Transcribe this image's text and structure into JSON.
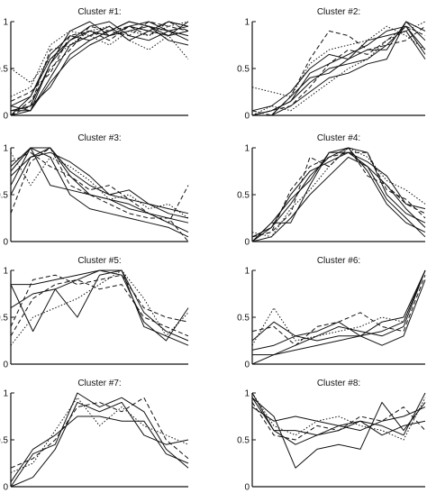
{
  "chart_data": [
    {
      "type": "line",
      "title": "Cluster #1:",
      "ylim": [
        0,
        1
      ],
      "yticks": [
        "0",
        "0.5",
        "1"
      ],
      "series": [
        {
          "values": [
            0.05,
            0.1,
            0.55,
            0.8,
            0.9,
            0.85,
            0.95,
            0.9,
            0.85,
            1.0
          ],
          "dash": "solid"
        },
        {
          "values": [
            0.0,
            0.05,
            0.4,
            0.75,
            0.85,
            0.95,
            0.8,
            0.9,
            1.0,
            0.95
          ],
          "dash": "solid"
        },
        {
          "values": [
            0.1,
            0.2,
            0.65,
            0.85,
            0.8,
            0.9,
            1.0,
            0.95,
            0.9,
            0.8
          ],
          "dash": "solid"
        },
        {
          "values": [
            0.0,
            0.15,
            0.5,
            0.7,
            0.95,
            0.9,
            0.85,
            1.0,
            0.95,
            0.9
          ],
          "dash": "dashed"
        },
        {
          "values": [
            0.2,
            0.3,
            0.75,
            0.9,
            0.85,
            0.75,
            0.9,
            0.85,
            0.95,
            1.0
          ],
          "dash": "dotted"
        },
        {
          "values": [
            0.05,
            0.05,
            0.35,
            0.6,
            0.75,
            0.85,
            0.95,
            1.0,
            0.9,
            0.85
          ],
          "dash": "solid"
        },
        {
          "values": [
            0.0,
            0.2,
            0.6,
            0.8,
            0.95,
            1.0,
            0.85,
            0.8,
            0.9,
            0.95
          ],
          "dash": "solid"
        },
        {
          "values": [
            0.15,
            0.25,
            0.45,
            0.85,
            0.9,
            0.8,
            0.95,
            0.9,
            1.0,
            0.9
          ],
          "dash": "dashed"
        },
        {
          "values": [
            0.5,
            0.35,
            0.6,
            0.75,
            0.9,
            0.95,
            0.8,
            0.7,
            0.85,
            0.6
          ],
          "dash": "dotted"
        },
        {
          "values": [
            0.05,
            0.1,
            0.3,
            0.65,
            0.8,
            0.9,
            1.0,
            0.95,
            0.85,
            0.9
          ],
          "dash": "solid"
        },
        {
          "values": [
            0.1,
            0.05,
            0.55,
            0.9,
            1.0,
            0.85,
            0.9,
            0.95,
            0.8,
            0.75
          ],
          "dash": "solid"
        },
        {
          "values": [
            0.0,
            0.1,
            0.7,
            0.75,
            0.85,
            0.9,
            0.95,
            0.85,
            1.0,
            0.95
          ],
          "dash": "dashed"
        }
      ]
    },
    {
      "type": "line",
      "title": "Cluster #2:",
      "ylim": [
        0,
        1
      ],
      "yticks": [
        "0",
        "0.5",
        "1"
      ],
      "series": [
        {
          "values": [
            0.0,
            0.05,
            0.15,
            0.35,
            0.5,
            0.55,
            0.6,
            0.75,
            0.95,
            0.7
          ],
          "dash": "solid"
        },
        {
          "values": [
            0.0,
            0.0,
            0.2,
            0.4,
            0.45,
            0.6,
            0.7,
            0.7,
            1.0,
            0.9
          ],
          "dash": "solid"
        },
        {
          "values": [
            0.05,
            0.1,
            0.25,
            0.5,
            0.65,
            0.6,
            0.8,
            0.85,
            0.9,
            0.6
          ],
          "dash": "solid"
        },
        {
          "values": [
            0.0,
            0.05,
            0.1,
            0.3,
            0.55,
            0.7,
            0.65,
            0.8,
            0.95,
            0.85
          ],
          "dash": "dashed"
        },
        {
          "values": [
            0.3,
            0.25,
            0.2,
            0.55,
            0.7,
            0.75,
            0.8,
            0.95,
            0.85,
            0.7
          ],
          "dash": "dotted"
        },
        {
          "values": [
            0.0,
            0.0,
            0.1,
            0.25,
            0.4,
            0.45,
            0.55,
            0.6,
            1.0,
            0.8
          ],
          "dash": "solid"
        },
        {
          "values": [
            0.05,
            0.0,
            0.2,
            0.6,
            0.9,
            0.85,
            0.7,
            0.75,
            0.8,
            0.95
          ],
          "dash": "dashed"
        },
        {
          "values": [
            0.0,
            0.05,
            0.15,
            0.45,
            0.55,
            0.65,
            0.75,
            0.9,
            0.95,
            0.65
          ],
          "dash": "solid"
        },
        {
          "values": [
            0.0,
            0.1,
            0.05,
            0.2,
            0.35,
            0.5,
            0.6,
            0.8,
            0.9,
            1.0
          ],
          "dash": "dotted"
        }
      ]
    },
    {
      "type": "line",
      "title": "Cluster #3:",
      "ylim": [
        0,
        1
      ],
      "yticks": [
        "0",
        "0.5",
        "1"
      ],
      "series": [
        {
          "values": [
            0.75,
            1.0,
            1.0,
            0.7,
            0.5,
            0.45,
            0.4,
            0.3,
            0.25,
            0.2
          ],
          "dash": "solid"
        },
        {
          "values": [
            0.8,
            1.0,
            0.6,
            0.55,
            0.5,
            0.45,
            0.35,
            0.3,
            0.2,
            0.1
          ],
          "dash": "solid"
        },
        {
          "values": [
            0.5,
            0.9,
            1.0,
            0.75,
            0.6,
            0.5,
            0.55,
            0.4,
            0.35,
            0.3
          ],
          "dash": "solid"
        },
        {
          "values": [
            0.3,
            0.85,
            1.0,
            0.6,
            0.5,
            0.4,
            0.3,
            0.25,
            0.25,
            0.0
          ],
          "dash": "dashed"
        },
        {
          "values": [
            0.95,
            0.6,
            0.9,
            0.8,
            0.65,
            0.45,
            0.5,
            0.35,
            0.4,
            0.25
          ],
          "dash": "dotted"
        },
        {
          "values": [
            0.6,
            1.0,
            0.9,
            0.5,
            0.35,
            0.3,
            0.25,
            0.2,
            0.15,
            0.05
          ],
          "dash": "solid"
        },
        {
          "values": [
            0.85,
            0.95,
            0.8,
            0.7,
            0.55,
            0.6,
            0.45,
            0.3,
            0.2,
            0.6
          ],
          "dash": "dashed"
        },
        {
          "values": [
            0.7,
            0.9,
            0.95,
            0.85,
            0.7,
            0.5,
            0.45,
            0.4,
            0.3,
            0.25
          ],
          "dash": "solid"
        }
      ]
    },
    {
      "type": "line",
      "title": "Cluster #4:",
      "ylim": [
        0,
        1
      ],
      "yticks": [
        "0",
        "0.5",
        "1"
      ],
      "series": [
        {
          "values": [
            0.05,
            0.15,
            0.4,
            0.7,
            0.9,
            1.0,
            0.95,
            0.5,
            0.3,
            0.2
          ],
          "dash": "solid"
        },
        {
          "values": [
            0.0,
            0.2,
            0.45,
            0.65,
            0.95,
            0.95,
            0.8,
            0.45,
            0.25,
            0.05
          ],
          "dash": "solid"
        },
        {
          "values": [
            0.05,
            0.1,
            0.3,
            0.9,
            0.8,
            1.0,
            0.7,
            0.6,
            0.4,
            0.3
          ],
          "dash": "dashed"
        },
        {
          "values": [
            0.0,
            0.15,
            0.5,
            0.75,
            0.85,
            0.95,
            0.85,
            0.7,
            0.4,
            0.35
          ],
          "dash": "solid"
        },
        {
          "values": [
            0.1,
            0.05,
            0.35,
            0.55,
            0.8,
            1.0,
            0.9,
            0.65,
            0.55,
            0.4
          ],
          "dash": "dotted"
        },
        {
          "values": [
            0.0,
            0.2,
            0.2,
            0.6,
            0.95,
            1.0,
            0.75,
            0.4,
            0.2,
            0.1
          ],
          "dash": "solid"
        },
        {
          "values": [
            0.05,
            0.1,
            0.55,
            0.8,
            0.9,
            0.95,
            0.95,
            0.55,
            0.45,
            0.25
          ],
          "dash": "dashed"
        },
        {
          "values": [
            0.0,
            0.05,
            0.25,
            0.5,
            0.7,
            0.9,
            0.8,
            0.6,
            0.35,
            0.15
          ],
          "dash": "solid"
        }
      ]
    },
    {
      "type": "line",
      "title": "Cluster #5:",
      "ylim": [
        0,
        1
      ],
      "yticks": [
        "0",
        "0.5",
        "1"
      ],
      "series": [
        {
          "values": [
            0.85,
            0.85,
            0.9,
            0.95,
            1.0,
            1.0,
            0.4,
            0.3,
            0.2
          ],
          "dash": "solid"
        },
        {
          "values": [
            0.6,
            0.75,
            0.8,
            0.5,
            0.95,
            1.0,
            0.55,
            0.35,
            0.25
          ],
          "dash": "solid"
        },
        {
          "values": [
            0.4,
            0.9,
            0.95,
            0.85,
            0.9,
            0.95,
            0.6,
            0.5,
            0.45
          ],
          "dash": "dashed"
        },
        {
          "values": [
            0.2,
            0.5,
            0.6,
            0.7,
            0.85,
            1.0,
            0.7,
            0.3,
            0.55
          ],
          "dash": "dotted"
        },
        {
          "values": [
            0.85,
            0.35,
            0.8,
            0.9,
            1.0,
            0.95,
            0.45,
            0.25,
            0.6
          ],
          "dash": "solid"
        },
        {
          "values": [
            0.3,
            0.7,
            0.85,
            0.9,
            0.8,
            0.85,
            0.5,
            0.4,
            0.3
          ],
          "dash": "dashed"
        }
      ]
    },
    {
      "type": "line",
      "title": "Cluster #6:",
      "ylim": [
        0,
        1
      ],
      "yticks": [
        "0",
        "0.5",
        "1"
      ],
      "series": [
        {
          "values": [
            0.25,
            0.45,
            0.3,
            0.35,
            0.45,
            0.3,
            0.45,
            0.5,
            1.0
          ],
          "dash": "solid"
        },
        {
          "values": [
            0.1,
            0.1,
            0.15,
            0.2,
            0.25,
            0.3,
            0.35,
            0.45,
            1.0
          ],
          "dash": "solid"
        },
        {
          "values": [
            0.0,
            0.1,
            0.2,
            0.3,
            0.4,
            0.35,
            0.3,
            0.4,
            1.0
          ],
          "dash": "solid"
        },
        {
          "values": [
            0.35,
            0.4,
            0.2,
            0.4,
            0.45,
            0.55,
            0.4,
            0.35,
            0.95
          ],
          "dash": "dashed"
        },
        {
          "values": [
            0.2,
            0.6,
            0.25,
            0.3,
            0.35,
            0.4,
            0.5,
            0.45,
            1.0
          ],
          "dash": "dotted"
        },
        {
          "values": [
            0.15,
            0.2,
            0.3,
            0.25,
            0.3,
            0.3,
            0.2,
            0.3,
            0.9
          ],
          "dash": "solid"
        }
      ]
    },
    {
      "type": "line",
      "title": "Cluster #7:",
      "ylim": [
        0,
        1
      ],
      "yticks": [
        "0",
        "0.5",
        "1"
      ],
      "series": [
        {
          "values": [
            0.0,
            0.35,
            0.45,
            1.0,
            0.85,
            0.95,
            0.8,
            0.4,
            0.2
          ],
          "dash": "solid"
        },
        {
          "values": [
            0.2,
            0.3,
            0.5,
            0.85,
            0.9,
            0.8,
            0.95,
            0.5,
            0.3
          ],
          "dash": "dashed"
        },
        {
          "values": [
            0.05,
            0.4,
            0.55,
            0.75,
            0.75,
            0.7,
            0.7,
            0.35,
            0.25
          ],
          "dash": "solid"
        },
        {
          "values": [
            0.15,
            0.25,
            0.6,
            0.95,
            0.65,
            0.85,
            0.65,
            0.55,
            0.45
          ],
          "dash": "dotted"
        },
        {
          "values": [
            0.0,
            0.1,
            0.4,
            0.9,
            0.8,
            0.9,
            0.55,
            0.45,
            0.5
          ],
          "dash": "solid"
        }
      ]
    },
    {
      "type": "line",
      "title": "Cluster #8:",
      "ylim": [
        0,
        1
      ],
      "yticks": [
        "0",
        "0.5",
        "1"
      ],
      "series": [
        {
          "values": [
            1.0,
            0.6,
            0.6,
            0.55,
            0.65,
            0.7,
            0.65,
            0.55,
            1.0
          ],
          "dash": "solid"
        },
        {
          "values": [
            0.95,
            0.75,
            0.2,
            0.4,
            0.45,
            0.4,
            0.9,
            0.6,
            0.9
          ],
          "dash": "solid"
        },
        {
          "values": [
            0.9,
            0.55,
            0.5,
            0.65,
            0.6,
            0.75,
            0.7,
            0.85,
            0.6
          ],
          "dash": "dashed"
        },
        {
          "values": [
            0.85,
            0.7,
            0.75,
            0.7,
            0.65,
            0.6,
            0.7,
            0.75,
            0.85
          ],
          "dash": "solid"
        },
        {
          "values": [
            1.0,
            0.65,
            0.55,
            0.7,
            0.75,
            0.65,
            0.6,
            0.5,
            0.95
          ],
          "dash": "dotted"
        },
        {
          "values": [
            0.95,
            0.6,
            0.45,
            0.55,
            0.6,
            0.7,
            0.55,
            0.65,
            0.7
          ],
          "dash": "solid"
        }
      ]
    }
  ]
}
